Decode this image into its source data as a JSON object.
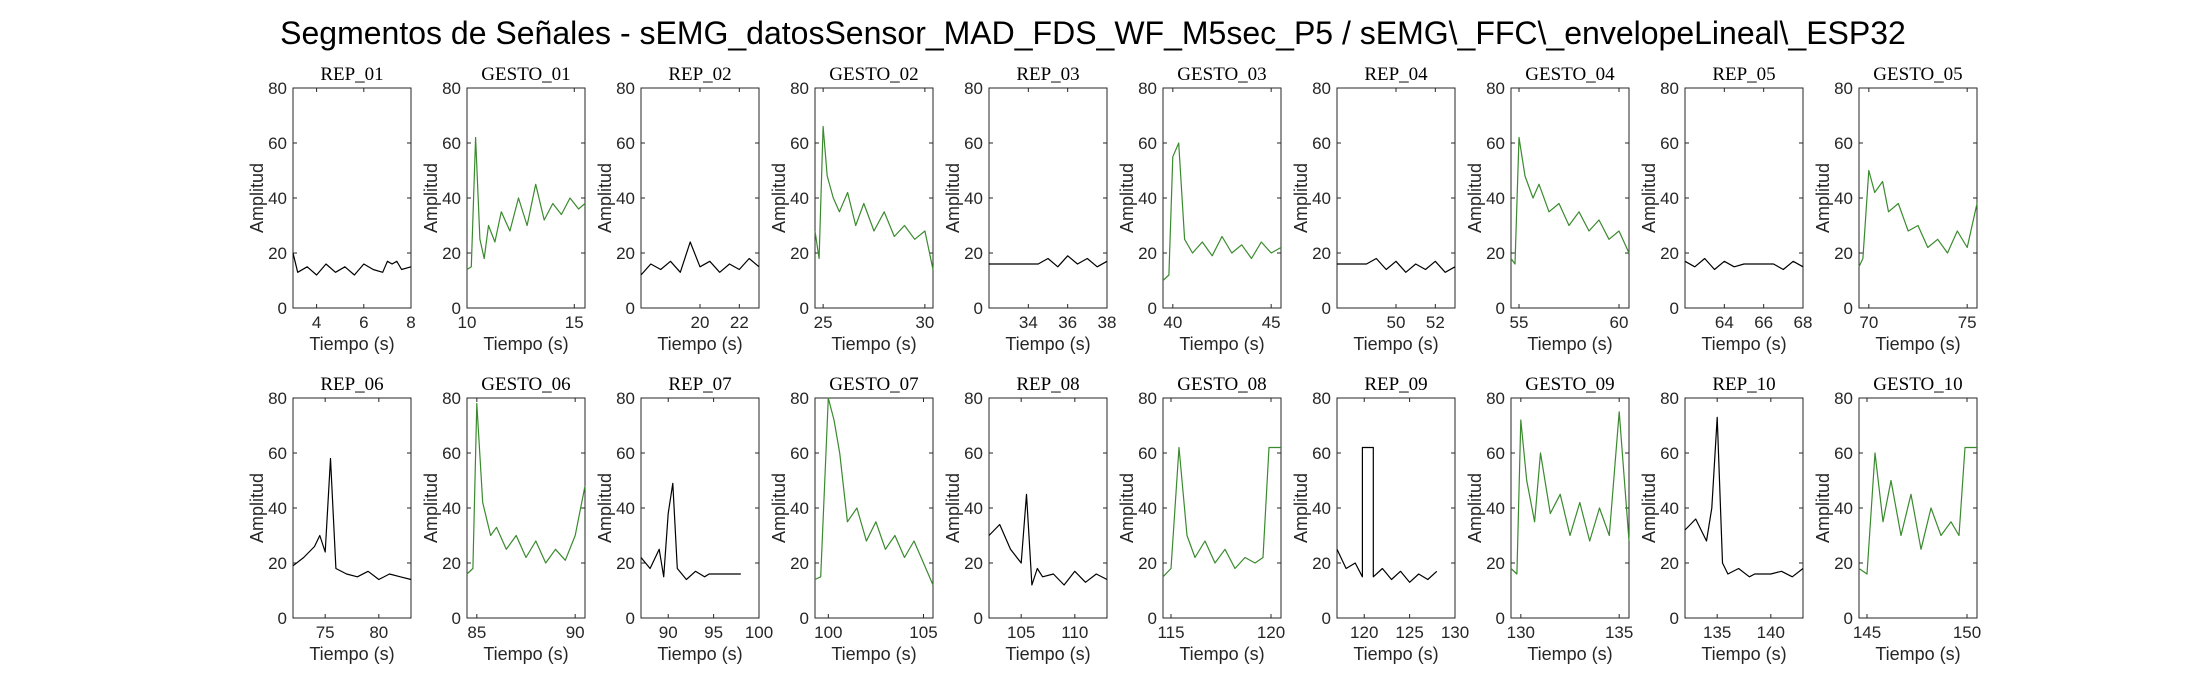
{
  "figure": {
    "suptitle": "Segmentos de Señales - sEMG_datosSensor_MAD_FDS_WF_M5sec_P5 / sEMG\\_FFC\\_envelopeLineal\\_ESP32",
    "colors": {
      "rep": "#000000",
      "gesto": "#3a8a2e",
      "axis": "#262626"
    }
  },
  "chart_data": [
    {
      "type": "line",
      "title": "REP_01",
      "xlabel": "Tiempo (s)",
      "ylabel": "Amplitud",
      "xlim": [
        3,
        8
      ],
      "ylim": [
        0,
        80
      ],
      "xticks": [
        4,
        6,
        8
      ],
      "yticks": [
        0,
        20,
        40,
        60,
        80
      ],
      "series": [
        {
          "color": "#000000",
          "x": [
            3,
            3.2,
            3.6,
            4,
            4.4,
            4.8,
            5.2,
            5.6,
            6,
            6.4,
            6.8,
            7,
            7.2,
            7.4,
            7.6,
            8
          ],
          "y": [
            20,
            13,
            15,
            12,
            16,
            13,
            15,
            12,
            16,
            14,
            13,
            17,
            16,
            17,
            14,
            15
          ]
        }
      ]
    },
    {
      "type": "line",
      "title": "GESTO_01",
      "xlabel": "Tiempo (s)",
      "ylabel": "Amplitud",
      "xlim": [
        10,
        15.5
      ],
      "ylim": [
        0,
        80
      ],
      "xticks": [
        10,
        15
      ],
      "yticks": [
        0,
        20,
        40,
        60,
        80
      ],
      "series": [
        {
          "color": "#3a8a2e",
          "x": [
            10,
            10.2,
            10.4,
            10.6,
            10.8,
            11,
            11.3,
            11.6,
            12,
            12.4,
            12.8,
            13.2,
            13.6,
            14,
            14.4,
            14.8,
            15.2,
            15.5
          ],
          "y": [
            14,
            15,
            62,
            25,
            18,
            30,
            24,
            35,
            28,
            40,
            30,
            45,
            32,
            38,
            34,
            40,
            36,
            38
          ]
        }
      ]
    },
    {
      "type": "line",
      "title": "REP_02",
      "xlabel": "Tiempo (s)",
      "ylabel": "Amplitud",
      "xlim": [
        17,
        23
      ],
      "ylim": [
        0,
        80
      ],
      "xticks": [
        20,
        22
      ],
      "yticks": [
        0,
        20,
        40,
        60,
        80
      ],
      "series": [
        {
          "color": "#000000",
          "x": [
            17,
            17.5,
            18,
            18.5,
            19,
            19.5,
            20,
            20.5,
            21,
            21.5,
            22,
            22.5,
            23
          ],
          "y": [
            12,
            16,
            14,
            17,
            13,
            24,
            15,
            17,
            13,
            16,
            14,
            18,
            15
          ]
        }
      ]
    },
    {
      "type": "line",
      "title": "GESTO_02",
      "xlabel": "Tiempo (s)",
      "ylabel": "Amplitud",
      "xlim": [
        24.6,
        30.4
      ],
      "ylim": [
        0,
        80
      ],
      "xticks": [
        25,
        30
      ],
      "yticks": [
        0,
        20,
        40,
        60,
        80
      ],
      "series": [
        {
          "color": "#3a8a2e",
          "x": [
            24.6,
            24.8,
            25,
            25.2,
            25.5,
            25.8,
            26.2,
            26.6,
            27,
            27.5,
            28,
            28.5,
            29,
            29.5,
            30,
            30.4
          ],
          "y": [
            28,
            18,
            66,
            48,
            40,
            35,
            42,
            30,
            38,
            28,
            35,
            26,
            30,
            25,
            28,
            14
          ]
        }
      ]
    },
    {
      "type": "line",
      "title": "REP_03",
      "xlabel": "Tiempo (s)",
      "ylabel": "Amplitud",
      "xlim": [
        32,
        38
      ],
      "ylim": [
        0,
        80
      ],
      "xticks": [
        34,
        36,
        38
      ],
      "yticks": [
        0,
        20,
        40,
        60,
        80
      ],
      "series": [
        {
          "color": "#000000",
          "x": [
            32,
            34.5,
            35,
            35.5,
            36,
            36.5,
            37,
            37.5,
            38
          ],
          "y": [
            16,
            16,
            18,
            15,
            19,
            16,
            18,
            15,
            17
          ]
        }
      ]
    },
    {
      "type": "line",
      "title": "GESTO_03",
      "xlabel": "Tiempo (s)",
      "ylabel": "Amplitud",
      "xlim": [
        39.5,
        45.5
      ],
      "ylim": [
        0,
        80
      ],
      "xticks": [
        40,
        45
      ],
      "yticks": [
        0,
        20,
        40,
        60,
        80
      ],
      "series": [
        {
          "color": "#3a8a2e",
          "x": [
            39.5,
            39.8,
            40,
            40.3,
            40.6,
            41,
            41.5,
            42,
            42.5,
            43,
            43.5,
            44,
            44.5,
            45,
            45.5
          ],
          "y": [
            10,
            12,
            55,
            60,
            25,
            20,
            24,
            19,
            26,
            20,
            23,
            18,
            24,
            20,
            22
          ]
        }
      ]
    },
    {
      "type": "line",
      "title": "REP_04",
      "xlabel": "Tiempo (s)",
      "ylabel": "Amplitud",
      "xlim": [
        47,
        53
      ],
      "ylim": [
        0,
        80
      ],
      "xticks": [
        50,
        52
      ],
      "yticks": [
        0,
        20,
        40,
        60,
        80
      ],
      "series": [
        {
          "color": "#000000",
          "x": [
            47,
            48.5,
            49,
            49.5,
            50,
            50.5,
            51,
            51.5,
            52,
            52.5,
            53
          ],
          "y": [
            16,
            16,
            18,
            14,
            17,
            13,
            16,
            14,
            17,
            13,
            15
          ]
        }
      ]
    },
    {
      "type": "line",
      "title": "GESTO_04",
      "xlabel": "Tiempo (s)",
      "ylabel": "Amplitud",
      "xlim": [
        54.6,
        60.5
      ],
      "ylim": [
        0,
        80
      ],
      "xticks": [
        55,
        60
      ],
      "yticks": [
        0,
        20,
        40,
        60,
        80
      ],
      "series": [
        {
          "color": "#3a8a2e",
          "x": [
            54.6,
            54.8,
            55,
            55.3,
            55.7,
            56,
            56.5,
            57,
            57.5,
            58,
            58.5,
            59,
            59.5,
            60,
            60.5
          ],
          "y": [
            18,
            16,
            62,
            48,
            40,
            45,
            35,
            38,
            30,
            35,
            28,
            32,
            25,
            28,
            20
          ]
        }
      ]
    },
    {
      "type": "line",
      "title": "REP_05",
      "xlabel": "Tiempo (s)",
      "ylabel": "Amplitud",
      "xlim": [
        62,
        68
      ],
      "ylim": [
        0,
        80
      ],
      "xticks": [
        64,
        66,
        68
      ],
      "yticks": [
        0,
        20,
        40,
        60,
        80
      ],
      "series": [
        {
          "color": "#000000",
          "x": [
            62,
            62.5,
            63,
            63.5,
            64,
            64.5,
            65,
            66.5,
            67,
            67.5,
            68
          ],
          "y": [
            17,
            15,
            18,
            14,
            17,
            15,
            16,
            16,
            14,
            17,
            15
          ]
        }
      ]
    },
    {
      "type": "line",
      "title": "GESTO_05",
      "xlabel": "Tiempo (s)",
      "ylabel": "Amplitud",
      "xlim": [
        69.5,
        75.5
      ],
      "ylim": [
        0,
        80
      ],
      "xticks": [
        70,
        75
      ],
      "yticks": [
        0,
        20,
        40,
        60,
        80
      ],
      "series": [
        {
          "color": "#3a8a2e",
          "x": [
            69.5,
            69.7,
            70,
            70.3,
            70.7,
            71,
            71.5,
            72,
            72.5,
            73,
            73.5,
            74,
            74.5,
            75,
            75.5
          ],
          "y": [
            15,
            18,
            50,
            42,
            46,
            35,
            38,
            28,
            30,
            22,
            25,
            20,
            28,
            22,
            38
          ]
        }
      ]
    },
    {
      "type": "line",
      "title": "REP_06",
      "xlabel": "Tiempo (s)",
      "ylabel": "Amplitud",
      "xlim": [
        72,
        83
      ],
      "ylim": [
        0,
        80
      ],
      "xticks": [
        75,
        80
      ],
      "yticks": [
        0,
        20,
        40,
        60,
        80
      ],
      "series": [
        {
          "color": "#000000",
          "x": [
            72,
            73,
            74,
            74.5,
            75,
            75.5,
            76,
            77,
            78,
            79,
            80,
            81,
            82,
            83
          ],
          "y": [
            19,
            22,
            26,
            30,
            24,
            58,
            18,
            16,
            15,
            17,
            14,
            16,
            15,
            14
          ]
        }
      ]
    },
    {
      "type": "line",
      "title": "GESTO_06",
      "xlabel": "Tiempo (s)",
      "ylabel": "Amplitud",
      "xlim": [
        84.5,
        90.5
      ],
      "ylim": [
        0,
        80
      ],
      "xticks": [
        85,
        90
      ],
      "yticks": [
        0,
        20,
        40,
        60,
        80
      ],
      "series": [
        {
          "color": "#3a8a2e",
          "x": [
            84.5,
            84.8,
            85,
            85.3,
            85.7,
            86,
            86.5,
            87,
            87.5,
            88,
            88.5,
            89,
            89.5,
            90,
            90.5
          ],
          "y": [
            16,
            18,
            78,
            42,
            30,
            33,
            25,
            30,
            22,
            28,
            20,
            25,
            21,
            30,
            48
          ]
        }
      ]
    },
    {
      "type": "line",
      "title": "REP_07",
      "xlabel": "Tiempo (s)",
      "ylabel": "Amplitud",
      "xlim": [
        87,
        100
      ],
      "ylim": [
        0,
        80
      ],
      "xticks": [
        90,
        95,
        100
      ],
      "yticks": [
        0,
        20,
        40,
        60,
        80
      ],
      "series": [
        {
          "color": "#000000",
          "x": [
            87,
            88,
            89,
            89.5,
            90,
            90.5,
            91,
            92,
            93,
            94,
            94.5,
            98
          ],
          "y": [
            22,
            18,
            25,
            15,
            38,
            49,
            18,
            14,
            17,
            15,
            16,
            16
          ]
        }
      ]
    },
    {
      "type": "line",
      "title": "GESTO_07",
      "xlabel": "Tiempo (s)",
      "ylabel": "Amplitud",
      "xlim": [
        99.3,
        105.5
      ],
      "ylim": [
        0,
        80
      ],
      "xticks": [
        100,
        105
      ],
      "yticks": [
        0,
        20,
        40,
        60,
        80
      ],
      "series": [
        {
          "color": "#3a8a2e",
          "x": [
            99.3,
            99.6,
            100,
            100.3,
            100.6,
            101,
            101.5,
            102,
            102.5,
            103,
            103.5,
            104,
            104.5,
            105,
            105.5
          ],
          "y": [
            14,
            15,
            80,
            72,
            60,
            35,
            40,
            28,
            35,
            25,
            30,
            22,
            28,
            20,
            12
          ]
        }
      ]
    },
    {
      "type": "line",
      "title": "REP_08",
      "xlabel": "Tiempo (s)",
      "ylabel": "Amplitud",
      "xlim": [
        102,
        113
      ],
      "ylim": [
        0,
        80
      ],
      "xticks": [
        105,
        110
      ],
      "yticks": [
        0,
        20,
        40,
        60,
        80
      ],
      "series": [
        {
          "color": "#000000",
          "x": [
            102,
            103,
            104,
            105,
            105.5,
            106,
            106.5,
            107,
            108,
            109,
            110,
            111,
            112,
            113
          ],
          "y": [
            30,
            34,
            25,
            20,
            45,
            12,
            18,
            15,
            16,
            12,
            17,
            13,
            16,
            14
          ]
        }
      ]
    },
    {
      "type": "line",
      "title": "GESTO_08",
      "xlabel": "Tiempo (s)",
      "ylabel": "Amplitud",
      "xlim": [
        114.6,
        120.5
      ],
      "ylim": [
        0,
        80
      ],
      "xticks": [
        115,
        120
      ],
      "yticks": [
        0,
        20,
        40,
        60,
        80
      ],
      "series": [
        {
          "color": "#3a8a2e",
          "x": [
            114.6,
            115,
            115.4,
            115.8,
            116.2,
            116.7,
            117.2,
            117.7,
            118.2,
            118.7,
            119.2,
            119.6,
            119.9,
            120.2,
            120.5
          ],
          "y": [
            15,
            18,
            62,
            30,
            22,
            28,
            20,
            25,
            18,
            22,
            20,
            22,
            62,
            62,
            62
          ]
        }
      ]
    },
    {
      "type": "line",
      "title": "REP_09",
      "xlabel": "Tiempo (s)",
      "ylabel": "Amplitud",
      "xlim": [
        117,
        130
      ],
      "ylim": [
        0,
        80
      ],
      "xticks": [
        120,
        125,
        130
      ],
      "yticks": [
        0,
        20,
        40,
        60,
        80
      ],
      "series": [
        {
          "color": "#000000",
          "x": [
            117,
            118,
            119,
            119.8,
            119.8,
            121,
            121,
            122,
            123,
            124,
            125,
            126,
            127,
            128
          ],
          "y": [
            25,
            18,
            20,
            15,
            62,
            62,
            15,
            18,
            14,
            17,
            13,
            16,
            14,
            17
          ]
        }
      ]
    },
    {
      "type": "line",
      "title": "GESTO_09",
      "xlabel": "Tiempo (s)",
      "ylabel": "Amplitud",
      "xlim": [
        129.5,
        135.5
      ],
      "ylim": [
        0,
        80
      ],
      "xticks": [
        130,
        135
      ],
      "yticks": [
        0,
        20,
        40,
        60,
        80
      ],
      "series": [
        {
          "color": "#3a8a2e",
          "x": [
            129.5,
            129.8,
            130,
            130.3,
            130.7,
            131,
            131.5,
            132,
            132.5,
            133,
            133.5,
            134,
            134.5,
            135,
            135.5
          ],
          "y": [
            18,
            16,
            72,
            50,
            35,
            60,
            38,
            45,
            30,
            42,
            28,
            40,
            30,
            75,
            28
          ]
        }
      ]
    },
    {
      "type": "line",
      "title": "REP_10",
      "xlabel": "Tiempo (s)",
      "ylabel": "Amplitud",
      "xlim": [
        132,
        143
      ],
      "ylim": [
        0,
        80
      ],
      "xticks": [
        135,
        140
      ],
      "yticks": [
        0,
        20,
        40,
        60,
        80
      ],
      "series": [
        {
          "color": "#000000",
          "x": [
            132,
            133,
            134,
            134.5,
            135,
            135.5,
            136,
            137,
            138,
            138.5,
            140,
            141,
            142,
            143
          ],
          "y": [
            32,
            36,
            28,
            40,
            73,
            20,
            16,
            18,
            15,
            16,
            16,
            17,
            15,
            18
          ]
        }
      ]
    },
    {
      "type": "line",
      "title": "GESTO_10",
      "xlabel": "Tiempo (s)",
      "ylabel": "Amplitud",
      "xlim": [
        144.6,
        150.5
      ],
      "ylim": [
        0,
        80
      ],
      "xticks": [
        145,
        150
      ],
      "yticks": [
        0,
        20,
        40,
        60,
        80
      ],
      "series": [
        {
          "color": "#3a8a2e",
          "x": [
            144.6,
            145,
            145.4,
            145.8,
            146.2,
            146.7,
            147.2,
            147.7,
            148.2,
            148.7,
            149.2,
            149.6,
            149.9,
            150.2,
            150.5
          ],
          "y": [
            18,
            16,
            60,
            35,
            50,
            30,
            45,
            25,
            40,
            30,
            35,
            30,
            62,
            62,
            62
          ]
        }
      ]
    }
  ]
}
